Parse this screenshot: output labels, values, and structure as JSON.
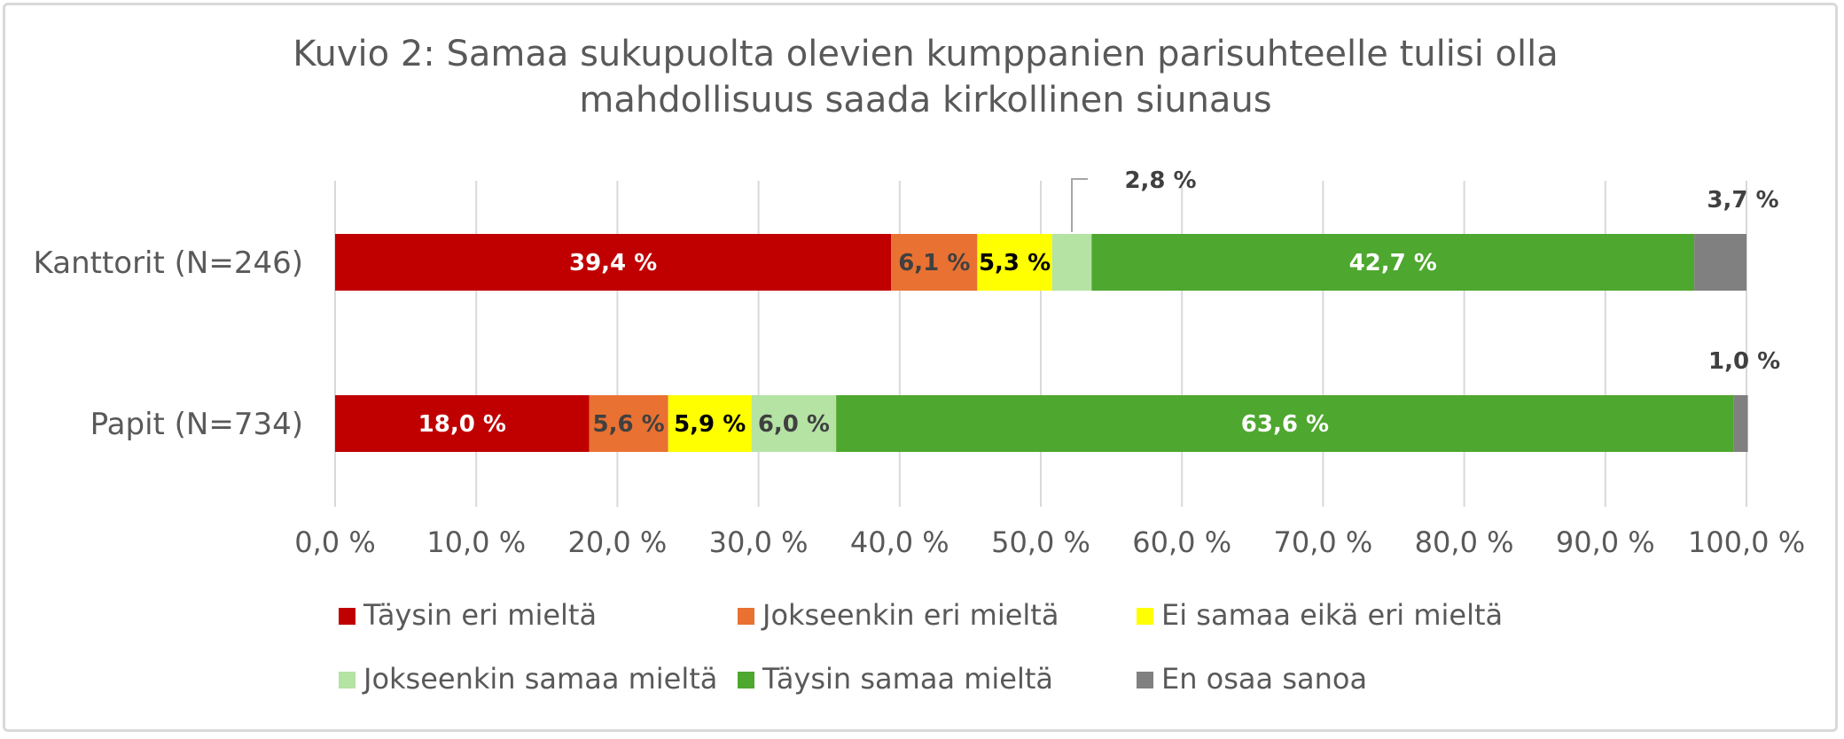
{
  "chart_data": {
    "type": "bar",
    "orientation": "horizontal",
    "stacked": true,
    "title": "Kuvio 2: Samaa sukupuolta olevien kumppanien parisuhteelle tulisi olla mahdollisuus saada kirkollinen siunaus",
    "title_lines": [
      "Kuvio 2: Samaa sukupuolta olevien kumppanien parisuhteelle tulisi olla",
      "mahdollisuus saada kirkollinen siunaus"
    ],
    "categories": [
      "Kanttorit (N=246)",
      "Papit (N=734)"
    ],
    "xlim": [
      0,
      100
    ],
    "x_ticks": [
      0,
      10,
      20,
      30,
      40,
      50,
      60,
      70,
      80,
      90,
      100
    ],
    "x_tick_labels": [
      "0,0 %",
      "10,0 %",
      "20,0 %",
      "30,0 %",
      "40,0 %",
      "50,0 %",
      "60,0 %",
      "70,0 %",
      "80,0 %",
      "90,0 %",
      "100,0 %"
    ],
    "grid": true,
    "legend_position": "bottom",
    "series": [
      {
        "name": "Täysin eri mieltä",
        "color": "#c00000",
        "label_color": "#ffffff",
        "values": [
          39.4,
          18.0
        ],
        "labels": [
          "39,4 %",
          "18,0 %"
        ]
      },
      {
        "name": "Jokseenkin eri mieltä",
        "color": "#e97132",
        "label_color": "#404040",
        "values": [
          6.1,
          5.6
        ],
        "labels": [
          "6,1 %",
          "5,6 %"
        ]
      },
      {
        "name": "Ei samaa eikä eri mieltä",
        "color": "#ffff00",
        "label_color": "#000000",
        "values": [
          5.3,
          5.9
        ],
        "labels": [
          "5,3 %",
          "5,9 %"
        ]
      },
      {
        "name": "Jokseenkin samaa mieltä",
        "color": "#b4e3a4",
        "label_color": "#404040",
        "values": [
          2.8,
          6.0
        ],
        "labels": [
          "2,8 %",
          "6,0 %"
        ]
      },
      {
        "name": "Täysin samaa mieltä",
        "color": "#4ea72e",
        "label_color": "#ffffff",
        "values": [
          42.7,
          63.6
        ],
        "labels": [
          "42,7 %",
          "63,6 %"
        ]
      },
      {
        "name": "En osaa sanoa",
        "color": "#808080",
        "label_color": "#404040",
        "values": [
          3.7,
          1.0
        ],
        "labels": [
          "3,7 %",
          "1,0 %"
        ]
      }
    ]
  }
}
